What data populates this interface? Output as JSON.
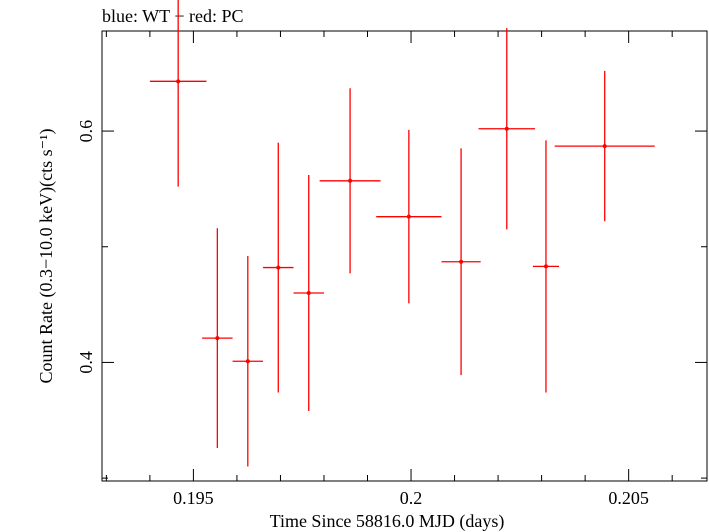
{
  "chart_data": {
    "type": "scatter",
    "title": "blue: WT − red: PC",
    "xlabel": "Time Since 58816.0 MJD (days)",
    "ylabel": "Count Rate (0.3−10.0 keV)(cts s⁻¹)",
    "xlim": [
      0.1929,
      0.2068
    ],
    "ylim": [
      0.2975,
      0.6865
    ],
    "x_ticks": [
      0.195,
      0.2,
      0.205
    ],
    "x_tick_labels": [
      "0.195",
      "0.2",
      "0.205"
    ],
    "x_minor_ticks": [
      0.193,
      0.194,
      0.196,
      0.197,
      0.198,
      0.199,
      0.201,
      0.202,
      0.203,
      0.204,
      0.206
    ],
    "y_ticks": [
      0.4,
      0.6
    ],
    "y_tick_labels": [
      "0.4",
      "0.6"
    ],
    "y_minor_ticks": [
      0.3,
      0.5
    ],
    "series": [
      {
        "color": "#ff0000",
        "points": [
          {
            "x": 0.19465,
            "xerr": 0.00065,
            "y": 0.643,
            "yerr": 0.091
          },
          {
            "x": 0.19555,
            "xerr": 0.00035,
            "y": 0.421,
            "yerr": 0.095
          },
          {
            "x": 0.19625,
            "xerr": 0.00035,
            "y": 0.401,
            "yerr": 0.091
          },
          {
            "x": 0.19695,
            "xerr": 0.00035,
            "y": 0.482,
            "yerr": 0.108
          },
          {
            "x": 0.19765,
            "xerr": 0.00035,
            "y": 0.46,
            "yerr": 0.102
          },
          {
            "x": 0.1986,
            "xerr": 0.0007,
            "y": 0.557,
            "yerr": 0.08
          },
          {
            "x": 0.19995,
            "xerr": 0.00075,
            "y": 0.526,
            "yerr": 0.075
          },
          {
            "x": 0.20115,
            "xerr": 0.00045,
            "y": 0.487,
            "yerr": 0.098
          },
          {
            "x": 0.2022,
            "xerr": 0.00065,
            "y": 0.602,
            "yerr": 0.087
          },
          {
            "x": 0.2031,
            "xerr": 0.0003,
            "y": 0.483,
            "yerr": 0.109
          },
          {
            "x": 0.20445,
            "xerr": 0.00115,
            "y": 0.587,
            "yerr": 0.065
          }
        ]
      }
    ]
  }
}
